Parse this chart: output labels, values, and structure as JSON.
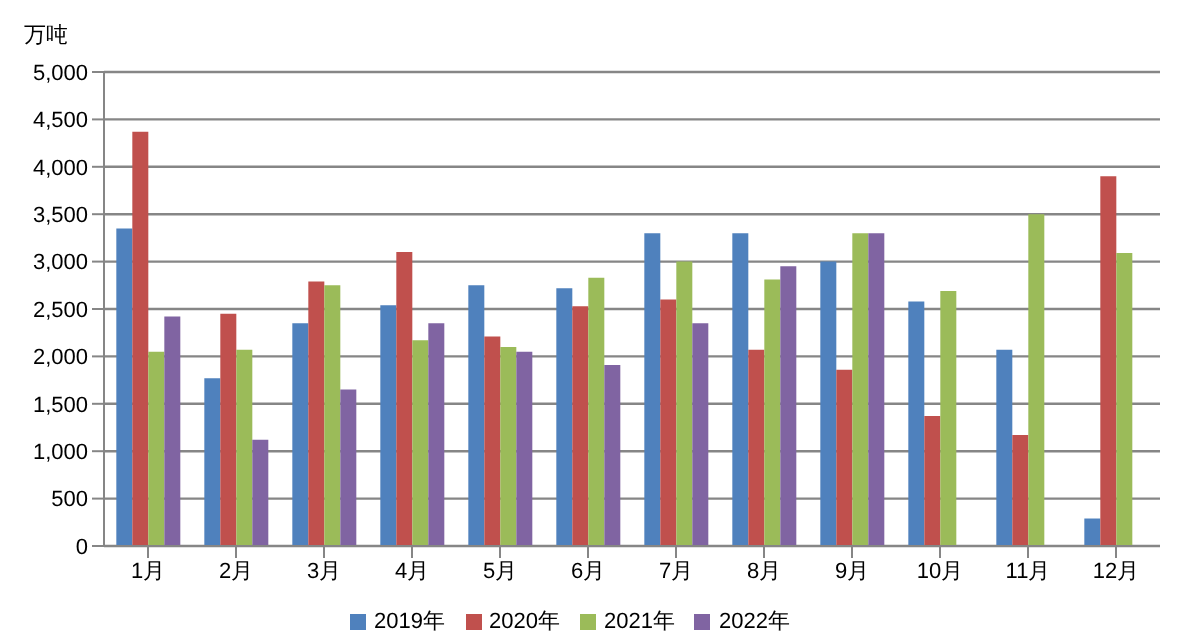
{
  "chart_data": {
    "type": "bar",
    "ylabel": "万吨",
    "categories": [
      "1月",
      "2月",
      "3月",
      "4月",
      "5月",
      "6月",
      "7月",
      "8月",
      "9月",
      "10月",
      "11月",
      "12月"
    ],
    "series": [
      {
        "name": "2019年",
        "color": "#4f81bd",
        "values": [
          3350,
          1770,
          2350,
          2540,
          2750,
          2720,
          3300,
          3300,
          3000,
          2580,
          2070,
          290
        ]
      },
      {
        "name": "2020年",
        "color": "#c0504d",
        "values": [
          4370,
          2450,
          2790,
          3100,
          2210,
          2530,
          2600,
          2070,
          1860,
          1370,
          1170,
          3900
        ]
      },
      {
        "name": "2021年",
        "color": "#9bbb59",
        "values": [
          2050,
          2070,
          2750,
          2170,
          2100,
          2830,
          3000,
          2810,
          3300,
          2690,
          3500,
          3090
        ]
      },
      {
        "name": "2022年",
        "color": "#8064a2",
        "values": [
          2420,
          1120,
          1650,
          2350,
          2050,
          1910,
          2350,
          2950,
          3300,
          null,
          null,
          null
        ]
      }
    ],
    "ylim": [
      0,
      5000
    ],
    "yticks": [
      0,
      500,
      {
        "value": 1000,
        "label": "1,000"
      },
      {
        "value": 1500,
        "label": "1,500"
      },
      {
        "value": 2000,
        "label": "2,000"
      },
      {
        "value": 2500,
        "label": "2,500"
      },
      {
        "value": 3000,
        "label": "3,000"
      },
      {
        "value": 3500,
        "label": "3,500"
      },
      {
        "value": 4000,
        "label": "4,000"
      },
      {
        "value": 4500,
        "label": "4,500"
      },
      {
        "value": 5000,
        "label": "5,000"
      }
    ],
    "grid": "y",
    "legend": "bottom"
  }
}
